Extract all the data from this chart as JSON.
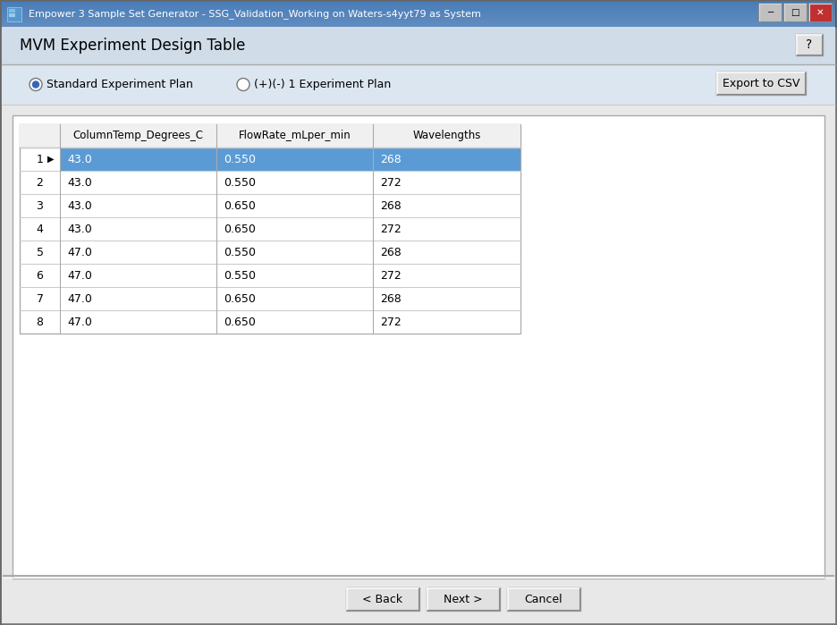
{
  "title_bar": "Empower 3 Sample Set Generator - SSG_Validation_Working on Waters-s4yyt79 as System",
  "dialog_title": "MVM Experiment Design Table",
  "radio1": "Standard Experiment Plan",
  "radio2": "(+)(-) 1 Experiment Plan",
  "button_export": "Export to CSV",
  "button_back": "< Back",
  "button_next": "Next >",
  "button_cancel": "Cancel",
  "col_headers": [
    "",
    "ColumnTemp_Degrees_C",
    "FlowRate_mLper_min",
    "Wavelengths"
  ],
  "row_numbers": [
    "1",
    "2",
    "3",
    "4",
    "5",
    "6",
    "7",
    "8"
  ],
  "col1": [
    "43.0",
    "43.0",
    "43.0",
    "43.0",
    "47.0",
    "47.0",
    "47.0",
    "47.0"
  ],
  "col2": [
    "0.550",
    "0.550",
    "0.650",
    "0.650",
    "0.550",
    "0.550",
    "0.650",
    "0.650"
  ],
  "col3": [
    "268",
    "272",
    "268",
    "272",
    "268",
    "272",
    "268",
    "272"
  ],
  "selected_row": 0,
  "win_bg": "#c8c8c8",
  "title_bar_bg": "#4a7db8",
  "title_bar_grad_end": "#6090c8",
  "dialog_bg": "#dce6f0",
  "inner_bg": "#e8e8e8",
  "table_bg": "#ffffff",
  "selected_row_bg": "#5b9bd5",
  "selected_row_text": "#ffffff",
  "header_bg": "#f0f0f0",
  "border_color": "#aaaaaa",
  "text_color": "#000000",
  "title_text_color": "#ffffff",
  "button_bg": "#e1e1e1",
  "cell_text_color": "#000000",
  "row_alt_bg": "#ffffff"
}
